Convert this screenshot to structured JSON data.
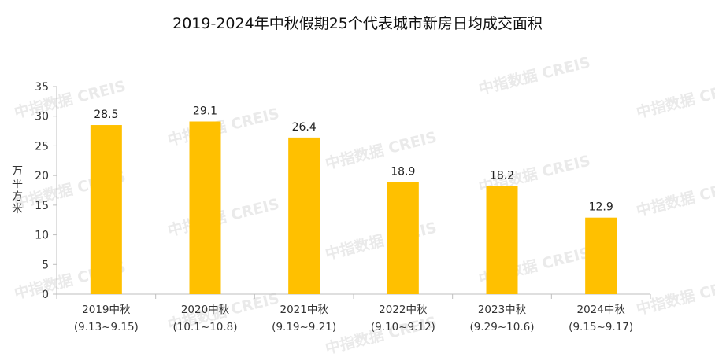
{
  "chart_data": {
    "type": "bar",
    "title": "2019-2024年中秋假期25个代表城市新房日均成交面积",
    "ylabel": "万平方米",
    "xlabel": "",
    "ylim": [
      0,
      35
    ],
    "yticks": [
      0,
      5,
      10,
      15,
      20,
      25,
      30,
      35
    ],
    "categories": [
      {
        "name": "2019中秋",
        "dates": "(9.13~9.15)"
      },
      {
        "name": "2020中秋",
        "dates": "(10.1~10.8)"
      },
      {
        "name": "2021中秋",
        "dates": "(9.19~9.21)"
      },
      {
        "name": "2022中秋",
        "dates": "(9.10~9.12)"
      },
      {
        "name": "2023中秋",
        "dates": "(9.29~10.6)"
      },
      {
        "name": "2024中秋",
        "dates": "(9.15~9.17)"
      }
    ],
    "values": [
      28.5,
      29.1,
      26.4,
      18.9,
      18.2,
      12.9
    ],
    "bar_color": "#FFC000",
    "grid": false,
    "legend": "none"
  },
  "watermark": {
    "text": "中指数据 CREIS",
    "color": "#E4E4E4"
  }
}
